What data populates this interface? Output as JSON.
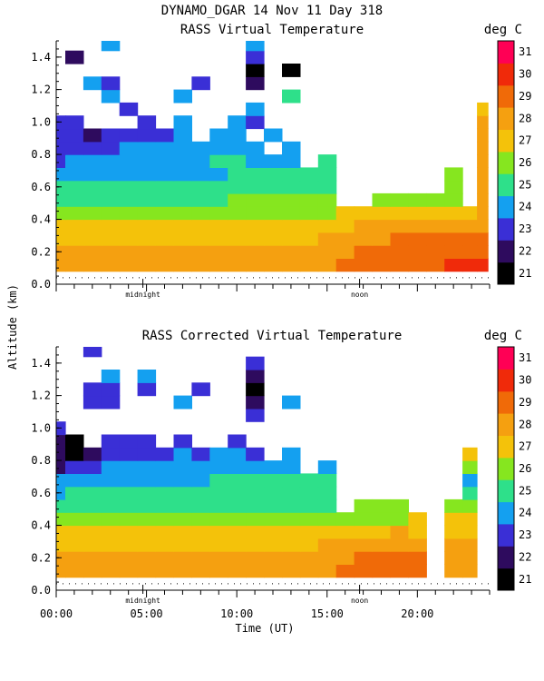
{
  "figure": {
    "title": "DYNAMO_DGAR  14 Nov 11 Day 318",
    "ylabel": "Altitude (km)",
    "xlabel": "Time (UT)"
  },
  "colorbar": {
    "unit": "deg C",
    "levels": [
      21,
      22,
      23,
      24,
      25,
      26,
      27,
      28,
      29,
      30,
      31
    ],
    "colors": [
      "#000000",
      "#2e0b5e",
      "#3a2fd6",
      "#14a0f0",
      "#2ee08a",
      "#86e61f",
      "#f4c20a",
      "#f5a010",
      "#f06a08",
      "#f02a0a",
      "#ff0055"
    ]
  },
  "chart_data": [
    {
      "type": "heatmap",
      "title": "RASS Virtual Temperature",
      "units": "deg C",
      "xlabel": "Time (UT)",
      "ylabel": "Altitude (km)",
      "xlim": [
        0,
        24
      ],
      "ylim": [
        0,
        1.5
      ],
      "yticks": [
        0.0,
        0.2,
        0.4,
        0.6,
        0.8,
        1.0,
        1.2,
        1.4
      ],
      "ytick_labels": [
        "0.0",
        "0.2",
        "0.4",
        "0.6",
        "0.8",
        "1.0",
        "1.2",
        "1.4"
      ],
      "markers": [
        {
          "label": "midnight",
          "hour": 4.8
        },
        {
          "label": "noon",
          "hour": 16.8
        }
      ],
      "altitude_levels_km": [
        0.12,
        0.2,
        0.28,
        0.36,
        0.44,
        0.52,
        0.6,
        0.68,
        0.76,
        0.84,
        0.92,
        1.0,
        1.08,
        1.16,
        1.24,
        1.32,
        1.4,
        1.48
      ],
      "times_hr": [
        0.0,
        1.0,
        2.0,
        3.0,
        4.0,
        5.0,
        6.0,
        7.0,
        8.0,
        9.0,
        10.0,
        11.0,
        12.0,
        13.0,
        14.0,
        15.0,
        16.0,
        17.0,
        18.0,
        19.0,
        20.0,
        21.0,
        22.0,
        23.0,
        23.6
      ],
      "temperature_degC": [
        [
          28,
          28,
          28,
          28,
          28,
          28,
          28,
          28,
          28,
          28,
          28,
          28,
          28,
          28,
          28,
          28,
          29,
          29,
          29,
          29,
          29,
          29,
          30,
          30,
          30
        ],
        [
          28,
          28,
          28,
          28,
          28,
          28,
          28,
          28,
          28,
          28,
          28,
          28,
          28,
          28,
          28,
          28,
          28,
          29,
          29,
          29,
          29,
          29,
          29,
          29,
          29
        ],
        [
          27,
          27,
          27,
          27,
          27,
          27,
          27,
          27,
          27,
          27,
          27,
          27,
          27,
          27,
          27,
          28,
          28,
          28,
          28,
          29,
          29,
          29,
          29,
          29,
          29
        ],
        [
          27,
          27,
          27,
          27,
          27,
          27,
          27,
          27,
          27,
          27,
          27,
          27,
          27,
          27,
          27,
          27,
          27,
          28,
          28,
          28,
          28,
          28,
          28,
          28,
          28
        ],
        [
          26,
          26,
          26,
          26,
          26,
          26,
          26,
          26,
          26,
          26,
          26,
          26,
          26,
          26,
          26,
          26,
          27,
          27,
          27,
          27,
          27,
          27,
          27,
          27,
          28
        ],
        [
          25,
          25,
          25,
          25,
          25,
          25,
          25,
          25,
          25,
          25,
          26,
          26,
          26,
          26,
          26,
          26,
          null,
          null,
          26,
          26,
          26,
          26,
          26,
          null,
          28
        ],
        [
          25,
          25,
          25,
          25,
          25,
          25,
          25,
          25,
          25,
          25,
          25,
          25,
          25,
          25,
          25,
          25,
          null,
          null,
          null,
          null,
          null,
          null,
          26,
          null,
          28
        ],
        [
          24,
          24,
          24,
          24,
          24,
          24,
          24,
          24,
          24,
          24,
          25,
          25,
          25,
          25,
          25,
          25,
          null,
          null,
          null,
          null,
          null,
          null,
          26,
          null,
          28
        ],
        [
          23,
          24,
          24,
          24,
          24,
          24,
          24,
          24,
          24,
          25,
          25,
          24,
          24,
          24,
          null,
          25,
          null,
          null,
          null,
          null,
          null,
          null,
          null,
          null,
          28
        ],
        [
          23,
          23,
          23,
          23,
          24,
          24,
          24,
          24,
          24,
          24,
          24,
          24,
          null,
          24,
          null,
          null,
          null,
          null,
          null,
          null,
          null,
          null,
          null,
          null,
          28
        ],
        [
          23,
          23,
          22,
          23,
          23,
          23,
          23,
          24,
          null,
          24,
          24,
          null,
          24,
          null,
          null,
          null,
          null,
          null,
          null,
          null,
          null,
          null,
          null,
          null,
          28
        ],
        [
          23,
          23,
          null,
          null,
          null,
          23,
          null,
          24,
          null,
          null,
          24,
          23,
          null,
          null,
          null,
          null,
          null,
          null,
          null,
          null,
          null,
          null,
          null,
          null,
          28
        ],
        [
          null,
          null,
          null,
          null,
          23,
          null,
          null,
          null,
          null,
          null,
          null,
          24,
          null,
          null,
          null,
          null,
          null,
          null,
          null,
          null,
          null,
          null,
          null,
          null,
          27
        ],
        [
          null,
          null,
          null,
          24,
          null,
          null,
          null,
          24,
          null,
          null,
          null,
          null,
          null,
          25,
          null,
          null,
          null,
          null,
          null,
          null,
          null,
          null,
          null,
          null,
          null
        ],
        [
          null,
          null,
          24,
          23,
          null,
          null,
          null,
          null,
          23,
          null,
          null,
          22,
          null,
          null,
          null,
          null,
          null,
          null,
          null,
          null,
          null,
          null,
          null,
          null,
          null
        ],
        [
          null,
          null,
          null,
          null,
          null,
          null,
          null,
          null,
          null,
          null,
          null,
          21,
          null,
          21,
          null,
          null,
          null,
          null,
          null,
          null,
          null,
          null,
          null,
          null,
          null
        ],
        [
          null,
          22,
          null,
          null,
          null,
          null,
          null,
          null,
          null,
          null,
          null,
          23,
          null,
          null,
          null,
          null,
          null,
          null,
          null,
          null,
          null,
          null,
          null,
          null,
          null
        ],
        [
          null,
          null,
          null,
          24,
          null,
          null,
          null,
          null,
          null,
          null,
          null,
          24,
          null,
          null,
          null,
          null,
          null,
          null,
          null,
          null,
          null,
          null,
          null,
          null,
          null
        ]
      ]
    },
    {
      "type": "heatmap",
      "title": "RASS Corrected Virtual Temperature",
      "units": "deg C",
      "xlabel": "Time (UT)",
      "ylabel": "Altitude (km)",
      "xlim": [
        0,
        24
      ],
      "ylim": [
        0,
        1.5
      ],
      "xticks": [
        0,
        5,
        10,
        15,
        20
      ],
      "xtick_labels": [
        "00:00",
        "05:00",
        "10:00",
        "15:00",
        "20:00"
      ],
      "yticks": [
        0.0,
        0.2,
        0.4,
        0.6,
        0.8,
        1.0,
        1.2,
        1.4
      ],
      "ytick_labels": [
        "0.0",
        "0.2",
        "0.4",
        "0.6",
        "0.8",
        "1.0",
        "1.2",
        "1.4"
      ],
      "markers": [
        {
          "label": "midnight",
          "hour": 4.8
        },
        {
          "label": "noon",
          "hour": 16.8
        }
      ],
      "altitude_levels_km": [
        0.12,
        0.2,
        0.28,
        0.36,
        0.44,
        0.52,
        0.6,
        0.68,
        0.76,
        0.84,
        0.92,
        1.0,
        1.08,
        1.16,
        1.24,
        1.32,
        1.4,
        1.48
      ],
      "times_hr": [
        0.0,
        1.0,
        2.0,
        3.0,
        4.0,
        5.0,
        6.0,
        7.0,
        8.0,
        9.0,
        10.0,
        11.0,
        12.0,
        13.0,
        14.0,
        15.0,
        16.0,
        17.0,
        18.0,
        19.0,
        20.0,
        21.0,
        22.0,
        23.0,
        23.6
      ],
      "temperature_degC": [
        [
          28,
          28,
          28,
          28,
          28,
          28,
          28,
          28,
          28,
          28,
          28,
          28,
          28,
          28,
          28,
          28,
          29,
          29,
          29,
          29,
          29,
          null,
          28,
          28,
          null
        ],
        [
          28,
          28,
          28,
          28,
          28,
          28,
          28,
          28,
          28,
          28,
          28,
          28,
          28,
          28,
          28,
          28,
          28,
          29,
          29,
          29,
          29,
          null,
          28,
          28,
          null
        ],
        [
          27,
          27,
          27,
          27,
          27,
          27,
          27,
          27,
          27,
          27,
          27,
          27,
          27,
          27,
          27,
          28,
          28,
          28,
          28,
          28,
          28,
          null,
          28,
          28,
          null
        ],
        [
          27,
          27,
          27,
          27,
          27,
          27,
          27,
          27,
          27,
          27,
          27,
          27,
          27,
          27,
          27,
          27,
          27,
          27,
          27,
          28,
          27,
          null,
          27,
          27,
          null
        ],
        [
          26,
          26,
          26,
          26,
          26,
          26,
          26,
          26,
          26,
          26,
          26,
          26,
          26,
          26,
          26,
          26,
          26,
          26,
          26,
          26,
          27,
          null,
          27,
          27,
          null
        ],
        [
          25,
          25,
          25,
          25,
          25,
          25,
          25,
          25,
          25,
          25,
          25,
          25,
          25,
          25,
          25,
          25,
          null,
          26,
          26,
          26,
          null,
          null,
          26,
          26,
          null
        ],
        [
          24,
          25,
          25,
          25,
          25,
          25,
          25,
          25,
          25,
          25,
          25,
          25,
          25,
          25,
          25,
          25,
          null,
          null,
          null,
          null,
          null,
          null,
          null,
          25,
          null
        ],
        [
          24,
          24,
          24,
          24,
          24,
          24,
          24,
          24,
          24,
          25,
          25,
          25,
          25,
          25,
          25,
          25,
          null,
          null,
          null,
          null,
          null,
          null,
          null,
          24,
          null
        ],
        [
          22,
          23,
          23,
          24,
          24,
          24,
          24,
          24,
          24,
          24,
          24,
          24,
          24,
          24,
          null,
          24,
          null,
          null,
          null,
          null,
          null,
          null,
          null,
          26,
          null
        ],
        [
          22,
          21,
          22,
          23,
          23,
          23,
          23,
          24,
          23,
          24,
          24,
          23,
          null,
          24,
          null,
          null,
          null,
          null,
          null,
          null,
          null,
          null,
          null,
          27,
          null
        ],
        [
          22,
          21,
          null,
          23,
          23,
          23,
          null,
          23,
          null,
          null,
          23,
          null,
          null,
          null,
          null,
          null,
          null,
          null,
          null,
          null,
          null,
          null,
          null,
          null,
          null
        ],
        [
          23,
          null,
          null,
          null,
          null,
          null,
          null,
          null,
          null,
          null,
          null,
          null,
          null,
          null,
          null,
          null,
          null,
          null,
          null,
          null,
          null,
          null,
          null,
          null,
          null
        ],
        [
          null,
          null,
          null,
          null,
          null,
          null,
          null,
          null,
          null,
          null,
          null,
          23,
          null,
          null,
          null,
          null,
          null,
          null,
          null,
          null,
          null,
          null,
          null,
          null,
          null
        ],
        [
          null,
          null,
          23,
          23,
          null,
          null,
          null,
          24,
          null,
          null,
          null,
          22,
          null,
          24,
          null,
          null,
          null,
          null,
          null,
          null,
          null,
          null,
          null,
          null,
          null
        ],
        [
          null,
          null,
          23,
          23,
          null,
          23,
          null,
          null,
          23,
          null,
          null,
          21,
          null,
          null,
          null,
          null,
          null,
          null,
          null,
          null,
          null,
          null,
          null,
          null,
          null
        ],
        [
          null,
          null,
          null,
          24,
          null,
          24,
          null,
          null,
          null,
          null,
          null,
          22,
          null,
          null,
          null,
          null,
          null,
          null,
          null,
          null,
          null,
          null,
          null,
          null,
          null
        ],
        [
          null,
          null,
          null,
          null,
          null,
          null,
          null,
          null,
          null,
          null,
          null,
          23,
          null,
          null,
          null,
          null,
          null,
          null,
          null,
          null,
          null,
          null,
          null,
          null,
          null
        ],
        [
          null,
          null,
          23,
          null,
          null,
          null,
          null,
          null,
          null,
          null,
          null,
          null,
          null,
          null,
          null,
          null,
          null,
          null,
          null,
          null,
          null,
          null,
          null,
          null,
          null
        ]
      ]
    }
  ]
}
